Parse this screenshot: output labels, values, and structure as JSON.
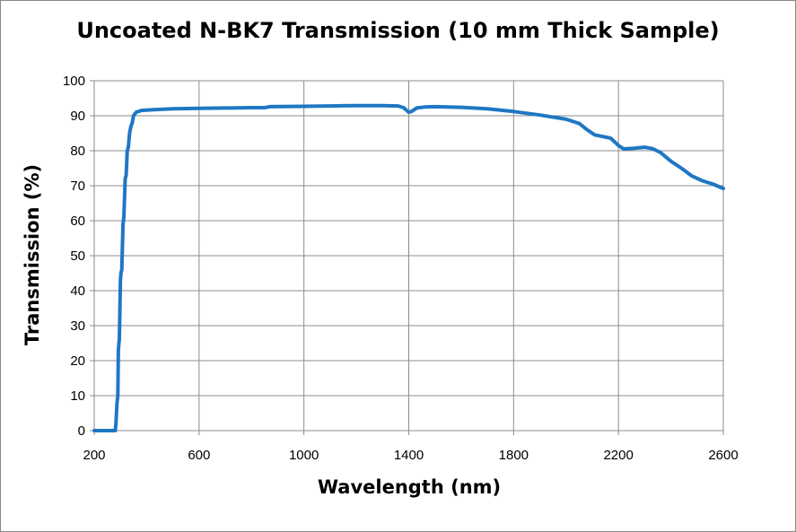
{
  "chart_data": {
    "type": "line",
    "title": "Uncoated N-BK7 Transmission (10 mm Thick Sample)",
    "xlabel": "Wavelength (nm)",
    "ylabel": "Transmission (%)",
    "xlim": [
      200,
      2600
    ],
    "ylim": [
      0,
      100
    ],
    "xticks": [
      200,
      600,
      1000,
      1400,
      1800,
      2200,
      2600
    ],
    "yticks": [
      0,
      10,
      20,
      30,
      40,
      50,
      60,
      70,
      80,
      90,
      100
    ],
    "grid": true,
    "legend": "none",
    "series": [
      {
        "color": "#1f77c4",
        "x": [
          200,
          280,
          283,
          287,
          290,
          292,
          294,
          296,
          300,
          302,
          305,
          310,
          313,
          318,
          322,
          326,
          330,
          335,
          340,
          345,
          350,
          360,
          380,
          420,
          500,
          600,
          700,
          800,
          850,
          870,
          1000,
          1100,
          1200,
          1300,
          1360,
          1380,
          1400,
          1410,
          1430,
          1460,
          1500,
          1600,
          1700,
          1800,
          1900,
          2000,
          2050,
          2080,
          2110,
          2130,
          2170,
          2200,
          2220,
          2260,
          2300,
          2330,
          2360,
          2400,
          2440,
          2480,
          2520,
          2560,
          2600
        ],
        "y": [
          0,
          0,
          2,
          8,
          10,
          23,
          25,
          26,
          43,
          45,
          46,
          59,
          61,
          72,
          73,
          80,
          81,
          85,
          87,
          88,
          90,
          91,
          91.5,
          91.7,
          92,
          92.1,
          92.2,
          92.3,
          92.3,
          92.6,
          92.7,
          92.8,
          92.9,
          92.9,
          92.8,
          92.3,
          91,
          91.2,
          92.2,
          92.5,
          92.6,
          92.4,
          92,
          91.2,
          90.2,
          89,
          87.8,
          86,
          84.5,
          84.2,
          83.6,
          81.5,
          80.5,
          80.7,
          81,
          80.6,
          79.5,
          77,
          75,
          72.8,
          71.4,
          70.5,
          69.2
        ]
      }
    ]
  }
}
